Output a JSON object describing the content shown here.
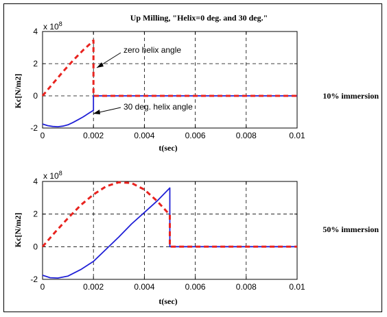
{
  "colors": {
    "helix0": "#e8231f",
    "helix30": "#1f1fd6",
    "axis": "#000000",
    "grid": "#000000"
  },
  "chart_data": [
    {
      "type": "line",
      "title": "Up Milling, \"Helix=0 deg. and 30 deg.\"",
      "side_label": "10% immersion",
      "xlabel": "t(sec)",
      "ylabel": "Kc[N/m2]",
      "exponent_label": {
        "base": "x 10",
        "exp": "8"
      },
      "xlim": [
        0,
        0.01
      ],
      "ylim": [
        -2,
        4
      ],
      "x_ticks": [
        "0",
        "0.002",
        "0.004",
        "0.006",
        "0.008",
        "0.01"
      ],
      "y_ticks": [
        "-2",
        "0",
        "2",
        "4"
      ],
      "grid": true,
      "annotations": [
        "zero helix angle",
        "30 deg. helix angle"
      ],
      "series": [
        {
          "style": "dashed",
          "color": "#e8231f",
          "x": [
            0,
            0.0004,
            0.0008,
            0.0012,
            0.0016,
            0.00195,
            0.002,
            0.002,
            0.01
          ],
          "y": [
            0,
            0.75,
            1.5,
            2.2,
            2.85,
            3.35,
            3.45,
            0,
            0
          ]
        },
        {
          "style": "solid",
          "color": "#1f1fd6",
          "x": [
            0,
            0.0002,
            0.0004,
            0.0006,
            0.0008,
            0.001,
            0.0012,
            0.0014,
            0.0016,
            0.0018,
            0.002,
            0.002,
            0.01
          ],
          "y": [
            -1.75,
            -1.85,
            -1.9,
            -1.92,
            -1.88,
            -1.8,
            -1.65,
            -1.48,
            -1.3,
            -1.1,
            -0.9,
            0,
            0
          ]
        }
      ]
    },
    {
      "type": "line",
      "title": "",
      "side_label": "50% immersion",
      "xlabel": "t(sec)",
      "ylabel": "Kc[N/m2]",
      "exponent_label": {
        "base": "x 10",
        "exp": "8"
      },
      "xlim": [
        0,
        0.01
      ],
      "ylim": [
        -2,
        4
      ],
      "x_ticks": [
        "0",
        "0.002",
        "0.004",
        "0.006",
        "0.008",
        "0.01"
      ],
      "y_ticks": [
        "-2",
        "0",
        "2",
        "4"
      ],
      "grid": true,
      "annotations": [],
      "series": [
        {
          "style": "dashed",
          "color": "#e8231f",
          "x": [
            0,
            0.0005,
            0.001,
            0.0015,
            0.002,
            0.0025,
            0.003,
            0.0035,
            0.004,
            0.0045,
            0.005,
            0.005,
            0.01
          ],
          "y": [
            0,
            0.9,
            1.75,
            2.55,
            3.2,
            3.7,
            3.95,
            3.9,
            3.5,
            2.8,
            1.95,
            0,
            0
          ]
        },
        {
          "style": "solid",
          "color": "#1f1fd6",
          "x": [
            0,
            0.0003,
            0.0006,
            0.001,
            0.0015,
            0.002,
            0.0025,
            0.003,
            0.0035,
            0.004,
            0.0045,
            0.005,
            0.005,
            0.01
          ],
          "y": [
            -1.75,
            -1.9,
            -1.92,
            -1.8,
            -1.4,
            -0.9,
            -0.15,
            0.6,
            1.4,
            2.1,
            2.8,
            3.6,
            0,
            0
          ]
        }
      ]
    }
  ]
}
